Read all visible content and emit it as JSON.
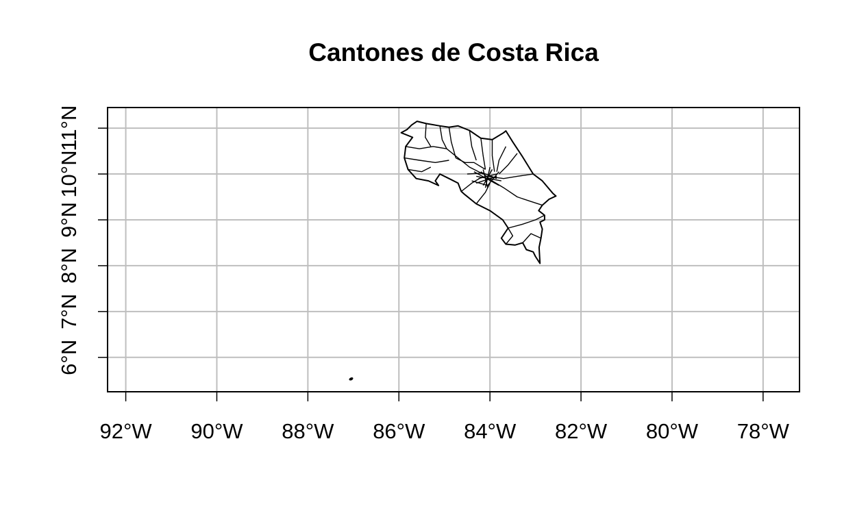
{
  "title": "Cantones de Costa Rica",
  "map_data": {
    "type": "map",
    "projection": "longlat",
    "grid": true,
    "xlim": [
      -92.4,
      -77.2
    ],
    "ylim": [
      5.25,
      11.45
    ],
    "x_ticks": [
      {
        "value": -92,
        "label": "92°W"
      },
      {
        "value": -90,
        "label": "90°W"
      },
      {
        "value": -88,
        "label": "88°W"
      },
      {
        "value": -86,
        "label": "86°W"
      },
      {
        "value": -84,
        "label": "84°W"
      },
      {
        "value": -82,
        "label": "82°W"
      },
      {
        "value": -80,
        "label": "80°W"
      },
      {
        "value": -78,
        "label": "78°W"
      }
    ],
    "y_ticks": [
      {
        "value": 6,
        "label": "6°N"
      },
      {
        "value": 7,
        "label": "7°N"
      },
      {
        "value": 8,
        "label": "8°N"
      },
      {
        "value": 9,
        "label": "9°N"
      },
      {
        "value": 10,
        "label": "10°N"
      },
      {
        "value": 11,
        "label": "11°N"
      }
    ],
    "outline": [
      [
        -85.95,
        10.9
      ],
      [
        -85.82,
        10.97
      ],
      [
        -85.72,
        11.07
      ],
      [
        -85.6,
        11.15
      ],
      [
        -85.4,
        11.1
      ],
      [
        -85.1,
        11.05
      ],
      [
        -84.9,
        11.02
      ],
      [
        -84.7,
        11.05
      ],
      [
        -84.45,
        10.95
      ],
      [
        -84.2,
        10.78
      ],
      [
        -83.95,
        10.75
      ],
      [
        -83.7,
        10.9
      ],
      [
        -83.65,
        10.94
      ],
      [
        -83.5,
        10.7
      ],
      [
        -83.3,
        10.4
      ],
      [
        -83.05,
        10.0
      ],
      [
        -82.85,
        9.85
      ],
      [
        -82.62,
        9.58
      ],
      [
        -82.55,
        9.52
      ],
      [
        -82.7,
        9.45
      ],
      [
        -82.85,
        9.32
      ],
      [
        -82.93,
        9.2
      ],
      [
        -82.8,
        9.1
      ],
      [
        -82.8,
        9.0
      ],
      [
        -82.9,
        8.95
      ],
      [
        -82.85,
        8.8
      ],
      [
        -82.88,
        8.6
      ],
      [
        -82.92,
        8.4
      ],
      [
        -82.9,
        8.05
      ],
      [
        -83.0,
        8.2
      ],
      [
        -83.05,
        8.3
      ],
      [
        -83.2,
        8.35
      ],
      [
        -83.28,
        8.5
      ],
      [
        -83.45,
        8.45
      ],
      [
        -83.65,
        8.47
      ],
      [
        -83.75,
        8.6
      ],
      [
        -83.6,
        8.82
      ],
      [
        -83.72,
        9.0
      ],
      [
        -84.0,
        9.2
      ],
      [
        -84.3,
        9.35
      ],
      [
        -84.55,
        9.55
      ],
      [
        -84.63,
        9.62
      ],
      [
        -84.7,
        9.8
      ],
      [
        -84.9,
        9.9
      ],
      [
        -85.1,
        10.0
      ],
      [
        -85.2,
        9.85
      ],
      [
        -85.13,
        9.75
      ],
      [
        -85.35,
        9.85
      ],
      [
        -85.62,
        9.9
      ],
      [
        -85.8,
        10.1
      ],
      [
        -85.88,
        10.35
      ],
      [
        -85.85,
        10.6
      ],
      [
        -85.7,
        10.8
      ],
      [
        -85.95,
        10.9
      ]
    ],
    "cantons": [
      [
        [
          -85.4,
          11.1
        ],
        [
          -85.42,
          10.8
        ],
        [
          -85.3,
          10.6
        ]
      ],
      [
        [
          -85.1,
          11.05
        ],
        [
          -85.05,
          10.75
        ],
        [
          -84.95,
          10.55
        ]
      ],
      [
        [
          -84.9,
          11.02
        ],
        [
          -84.85,
          10.7
        ],
        [
          -84.75,
          10.35
        ]
      ],
      [
        [
          -84.45,
          10.95
        ],
        [
          -84.4,
          10.6
        ],
        [
          -84.3,
          10.3
        ]
      ],
      [
        [
          -84.2,
          10.78
        ],
        [
          -84.15,
          10.4
        ],
        [
          -84.1,
          10.1
        ]
      ],
      [
        [
          -83.95,
          10.75
        ],
        [
          -83.95,
          10.4
        ],
        [
          -83.9,
          10.05
        ]
      ],
      [
        [
          -83.65,
          10.6
        ],
        [
          -83.8,
          10.3
        ],
        [
          -83.85,
          10.05
        ]
      ],
      [
        [
          -83.4,
          10.45
        ],
        [
          -83.6,
          10.2
        ],
        [
          -83.8,
          10.0
        ]
      ],
      [
        [
          -85.85,
          10.6
        ],
        [
          -85.55,
          10.55
        ],
        [
          -85.25,
          10.6
        ],
        [
          -84.95,
          10.55
        ]
      ],
      [
        [
          -85.88,
          10.35
        ],
        [
          -85.55,
          10.3
        ],
        [
          -85.2,
          10.25
        ],
        [
          -84.9,
          10.3
        ]
      ],
      [
        [
          -85.8,
          10.1
        ],
        [
          -85.5,
          10.05
        ],
        [
          -85.3,
          10.15
        ]
      ],
      [
        [
          -84.95,
          10.55
        ],
        [
          -84.7,
          10.35
        ],
        [
          -84.45,
          10.15
        ],
        [
          -84.15,
          10.0
        ]
      ],
      [
        [
          -84.75,
          10.35
        ],
        [
          -84.55,
          10.25
        ],
        [
          -84.35,
          10.25
        ],
        [
          -84.1,
          10.1
        ]
      ],
      [
        [
          -84.63,
          9.62
        ],
        [
          -84.4,
          9.8
        ],
        [
          -84.2,
          9.92
        ],
        [
          -84.05,
          9.95
        ]
      ],
      [
        [
          -84.3,
          9.35
        ],
        [
          -84.1,
          9.6
        ],
        [
          -84.0,
          9.8
        ]
      ],
      [
        [
          -83.05,
          10.0
        ],
        [
          -83.4,
          9.95
        ],
        [
          -83.7,
          9.9
        ],
        [
          -84.05,
          9.95
        ]
      ],
      [
        [
          -82.85,
          9.32
        ],
        [
          -83.1,
          9.4
        ],
        [
          -83.4,
          9.5
        ],
        [
          -83.7,
          9.7
        ],
        [
          -83.95,
          9.85
        ]
      ],
      [
        [
          -83.6,
          8.82
        ],
        [
          -83.3,
          8.9
        ],
        [
          -83.0,
          9.0
        ],
        [
          -82.8,
          9.1
        ]
      ],
      [
        [
          -83.28,
          8.5
        ],
        [
          -83.1,
          8.7
        ],
        [
          -82.88,
          8.6
        ]
      ],
      [
        [
          -83.65,
          8.47
        ],
        [
          -83.5,
          8.65
        ],
        [
          -83.6,
          8.82
        ]
      ],
      [
        [
          -84.2,
          10.05
        ],
        [
          -83.9,
          9.8
        ]
      ],
      [
        [
          -84.25,
          9.9
        ],
        [
          -83.85,
          10.0
        ]
      ],
      [
        [
          -84.15,
          9.75
        ],
        [
          -83.95,
          10.1
        ]
      ],
      [
        [
          -84.3,
          9.95
        ],
        [
          -83.75,
          9.85
        ]
      ],
      [
        [
          -84.1,
          9.7
        ],
        [
          -84.0,
          10.15
        ]
      ],
      [
        [
          -84.35,
          10.05
        ],
        [
          -83.8,
          9.75
        ]
      ],
      [
        [
          -84.3,
          9.8
        ],
        [
          -83.85,
          9.95
        ]
      ],
      [
        [
          -84.05,
          9.7
        ],
        [
          -84.15,
          10.1
        ]
      ],
      [
        [
          -84.4,
          9.85
        ],
        [
          -84.05,
          9.75
        ],
        [
          -83.8,
          10.05
        ]
      ],
      [
        [
          -84.5,
          10.0
        ],
        [
          -84.15,
          10.02
        ],
        [
          -83.85,
          9.9
        ]
      ]
    ],
    "islands": [
      {
        "lon": -87.05,
        "lat": 5.53
      }
    ]
  }
}
